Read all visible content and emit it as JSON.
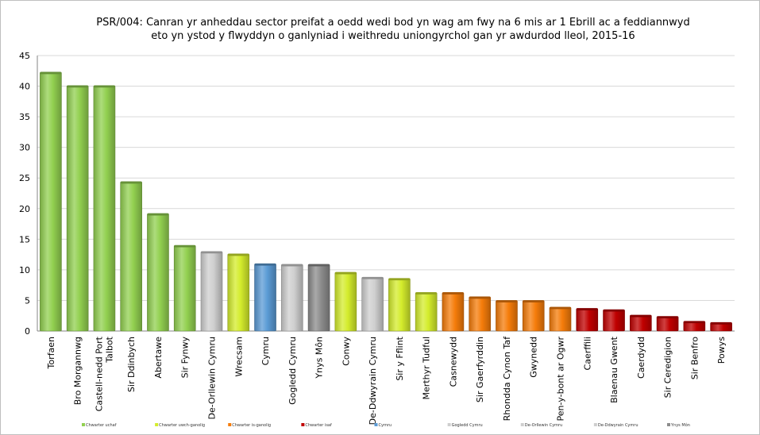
{
  "chart_data": {
    "type": "bar",
    "title": [
      "PSR/004: Canran yr anheddau sector preifat a oedd wedi bod yn wag am fwy na 6 mis ar 1 Ebrill ac a feddiannwyd",
      "eto yn ystod y flwyddyn o ganlyniad i weithredu uniongyrchol gan yr awdurdod lleol, 2015-16"
    ],
    "xlabel": "",
    "ylabel": "",
    "ylim": [
      0,
      45
    ],
    "yticks": [
      0,
      5,
      10,
      15,
      20,
      25,
      30,
      35,
      40,
      45
    ],
    "grid": true,
    "legend_position": "bottom",
    "categories": [
      [
        "Torfaen"
      ],
      [
        "Bro Morgannwg"
      ],
      [
        "Castell-nedd Port",
        "Talbot"
      ],
      [
        "Sir Ddinbych"
      ],
      [
        "Abertawe"
      ],
      [
        "Sir Fynwy"
      ],
      [
        "De-Orllewin Cymru"
      ],
      [
        "Wrecsam"
      ],
      [
        "Cymru"
      ],
      [
        "Gogledd Cymru"
      ],
      [
        "Ynys Môn"
      ],
      [
        "Conwy"
      ],
      [
        "De-Ddwyrain Cymru"
      ],
      [
        "Sir y Fflint"
      ],
      [
        "Merthyr Tudful"
      ],
      [
        "Casnewydd"
      ],
      [
        "Sir Gaerfyrddin"
      ],
      [
        "Rhondda Cynon Taf"
      ],
      [
        "Gwynedd"
      ],
      [
        "Pen-y-bont ar Ogwr"
      ],
      [
        "Caerffili"
      ],
      [
        "Blaenau Gwent"
      ],
      [
        "Caerdydd"
      ],
      [
        "Sir Ceredigion"
      ],
      [
        "Sir Benfro"
      ],
      [
        "Powys"
      ]
    ],
    "values": [
      42.3,
      40.1,
      40.1,
      24.4,
      19.2,
      14.0,
      13.0,
      12.6,
      11.0,
      10.9,
      10.9,
      9.6,
      8.8,
      8.6,
      6.3,
      6.3,
      5.6,
      5.0,
      5.0,
      3.9,
      3.7,
      3.5,
      2.6,
      2.4,
      1.6,
      1.4
    ],
    "groups": [
      "uchaf",
      "uchaf",
      "uchaf",
      "uchaf",
      "uchaf",
      "uchaf",
      "de-orllewin",
      "uwch",
      "cymru",
      "gogledd",
      "ynys",
      "uwch",
      "de-ddwyrain",
      "uwch",
      "uwch",
      "is",
      "is",
      "is",
      "is",
      "is",
      "isaf",
      "isaf",
      "isaf",
      "isaf",
      "isaf",
      "isaf"
    ],
    "colors": {
      "uchaf": "#92d050",
      "uwch": "#d4ec2c",
      "is": "#f57c0a",
      "isaf": "#c00000",
      "cymru": "#5b9bd5",
      "gogledd": "#cfcfcf",
      "de-orllewin": "#cfcfcf",
      "de-ddwyrain": "#cfcfcf",
      "ynys": "#8c8c8c"
    },
    "legend": [
      {
        "group": "uchaf",
        "label": "Chwarter uchaf"
      },
      {
        "group": "uwch",
        "label": "Chwarter uwch-ganolig"
      },
      {
        "group": "is",
        "label": "Chwarter is-ganolig"
      },
      {
        "group": "isaf",
        "label": "Chwarter isaf"
      },
      {
        "group": "cymru",
        "label": "Cymru"
      },
      {
        "group": "gogledd",
        "label": "Gogledd Cymru"
      },
      {
        "group": "de-orllewin",
        "label": "De-Orllewin Cymru"
      },
      {
        "group": "de-ddwyrain",
        "label": "De-Ddwyrain Cymru"
      },
      {
        "group": "ynys",
        "label": "Ynys Môn"
      }
    ]
  }
}
